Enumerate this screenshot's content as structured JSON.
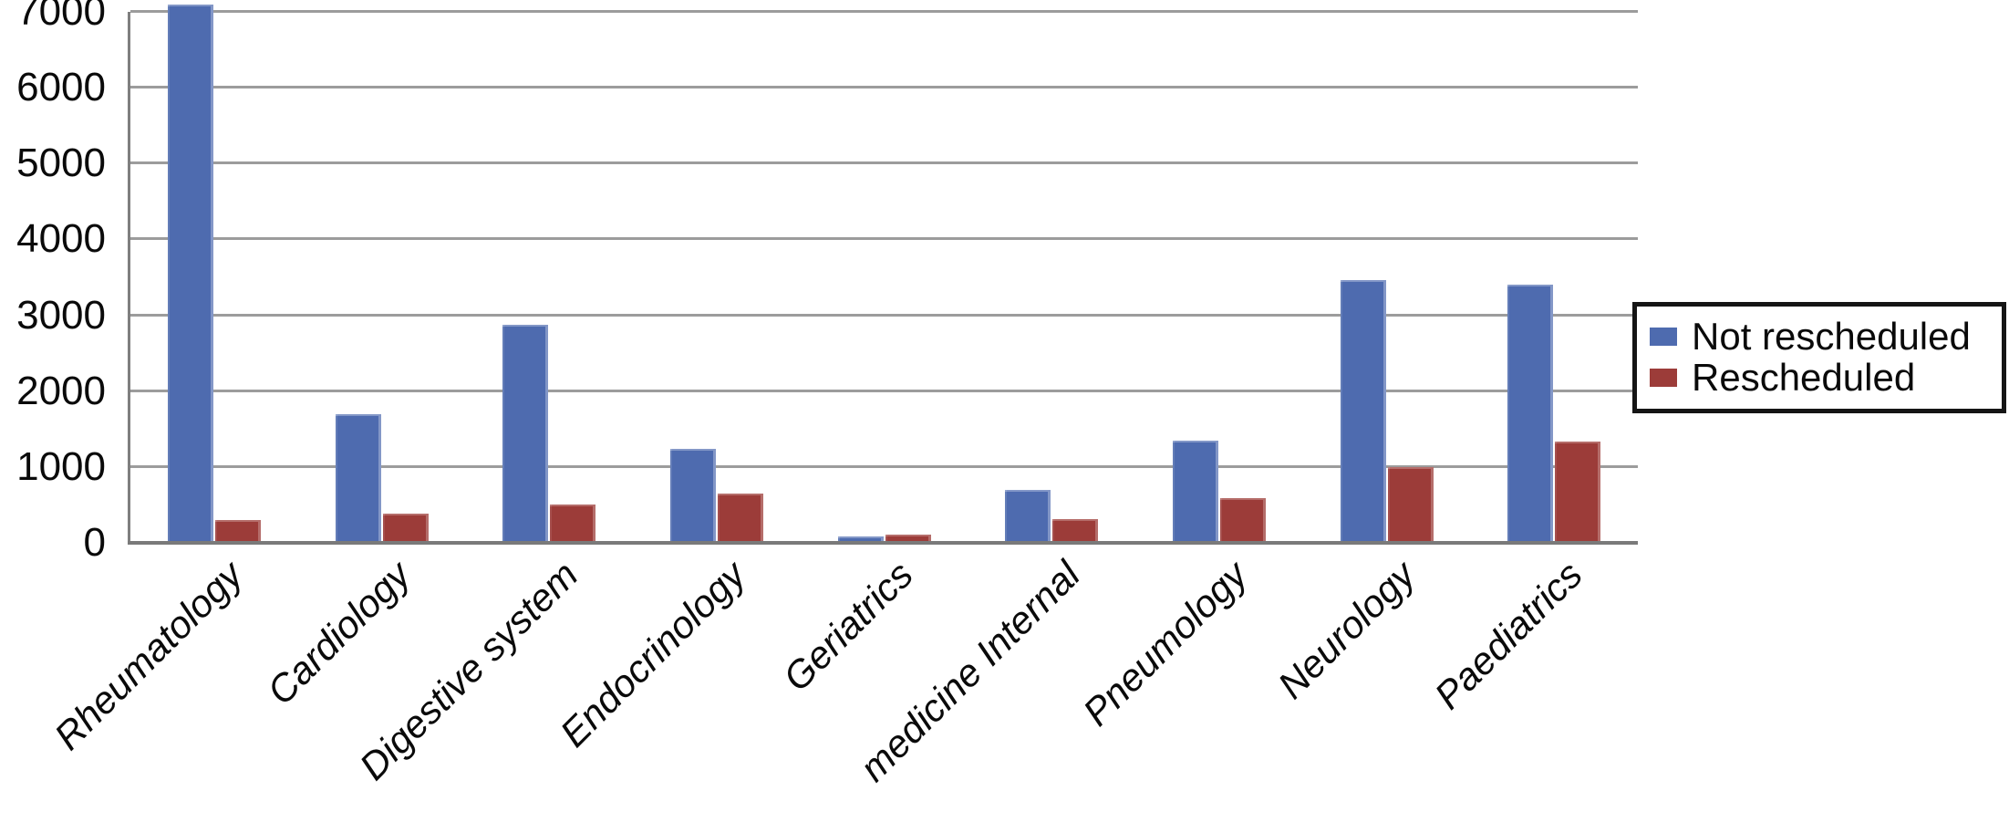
{
  "chart_data": {
    "type": "bar",
    "title": "",
    "xlabel": "",
    "ylabel": "",
    "categories": [
      "Rheumatology",
      "Cardiology",
      "Digestive system",
      "Endocrinology",
      "Geriatrics",
      "medicine Internal",
      "Pneumology",
      "Neurology",
      "Paediatrics"
    ],
    "series": [
      {
        "name": "Not rescheduled",
        "color": "#4e6baf",
        "values": [
          7100,
          1700,
          2880,
          1240,
          90,
          700,
          1350,
          3460,
          3400
        ]
      },
      {
        "name": "Rescheduled",
        "color": "#9c3c39",
        "values": [
          300,
          390,
          500,
          650,
          110,
          310,
          590,
          1000,
          1340
        ]
      }
    ],
    "ylim": [
      0,
      7000
    ],
    "yticks": [
      0,
      1000,
      2000,
      3000,
      4000,
      5000,
      6000,
      7000
    ],
    "grid": true,
    "grid_color": "#9c9c9c",
    "axis_color": "#7f7f7f",
    "legend_position": "right",
    "note": "Tallest bar (Rheumatology, Not rescheduled) is clipped at the 7000 axis maximum"
  }
}
